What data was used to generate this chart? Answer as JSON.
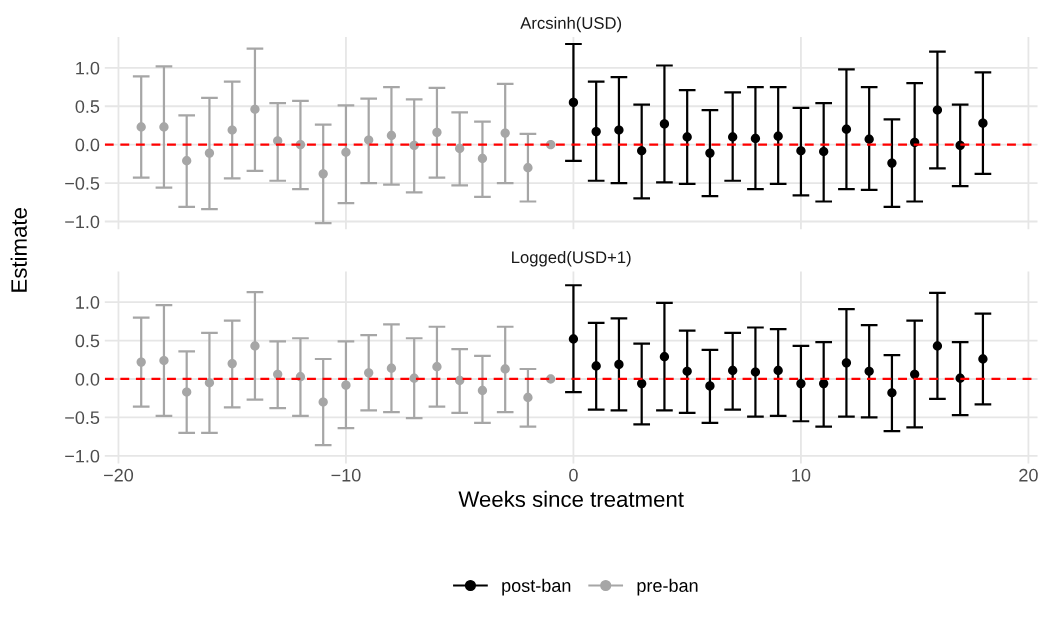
{
  "chart_data": [
    {
      "type": "scatter",
      "title": "Arcsinh(USD)",
      "ylabel": "Estimate",
      "xlim": [
        -20.6,
        20.4
      ],
      "ylim": [
        -1.1,
        1.4
      ],
      "xticks": [
        {
          "value": -20,
          "label": null
        },
        {
          "value": -10,
          "label": null
        },
        {
          "value": 0,
          "label": null
        },
        {
          "value": 10,
          "label": null
        },
        {
          "value": 20,
          "label": null
        }
      ],
      "yticks": [
        {
          "value": -1,
          "label": "−1.0"
        },
        {
          "value": -0.5,
          "label": "−0.5"
        },
        {
          "value": 0,
          "label": "0.0"
        },
        {
          "value": 0.5,
          "label": "0.5"
        },
        {
          "value": 1,
          "label": "1.0"
        }
      ],
      "tick_labels": "y",
      "grid": true,
      "legend": "bottom",
      "marker": "circle",
      "ref_lines": [
        {
          "axis": "y",
          "value": 0,
          "color": "#ff0000",
          "line_style": "dashed"
        }
      ],
      "series": [
        {
          "name": "post-ban",
          "color": "#000000",
          "x": [
            0,
            1,
            2,
            3,
            4,
            5,
            6,
            7,
            8,
            9,
            10,
            11,
            12,
            13,
            14,
            15,
            16,
            17,
            18
          ],
          "values": [
            0.55,
            0.17,
            0.19,
            -0.08,
            0.27,
            0.1,
            -0.11,
            0.1,
            0.08,
            0.11,
            -0.08,
            -0.09,
            0.2,
            0.07,
            -0.24,
            0.03,
            0.45,
            -0.01,
            0.28
          ],
          "errors": [
            [
              -0.21,
              1.31
            ],
            [
              -0.47,
              0.82
            ],
            [
              -0.5,
              0.88
            ],
            [
              -0.7,
              0.52
            ],
            [
              -0.49,
              1.03
            ],
            [
              -0.51,
              0.71
            ],
            [
              -0.67,
              0.45
            ],
            [
              -0.47,
              0.68
            ],
            [
              -0.58,
              0.75
            ],
            [
              -0.51,
              0.75
            ],
            [
              -0.66,
              0.48
            ],
            [
              -0.74,
              0.54
            ],
            [
              -0.58,
              0.98
            ],
            [
              -0.59,
              0.75
            ],
            [
              -0.81,
              0.33
            ],
            [
              -0.74,
              0.8
            ],
            [
              -0.31,
              1.21
            ],
            [
              -0.54,
              0.52
            ],
            [
              -0.38,
              0.94
            ]
          ]
        },
        {
          "name": "pre-ban",
          "color": "#a6a6a6",
          "x": [
            -19,
            -18,
            -17,
            -16,
            -15,
            -14,
            -13,
            -12,
            -11,
            -10,
            -9,
            -8,
            -7,
            -6,
            -5,
            -4,
            -3,
            -2,
            -1
          ],
          "values": [
            0.23,
            0.23,
            -0.21,
            -0.11,
            0.19,
            0.46,
            0.05,
            0.0,
            -0.38,
            -0.1,
            0.06,
            0.12,
            -0.01,
            0.16,
            -0.05,
            -0.18,
            0.15,
            -0.3,
            0.0
          ],
          "errors": [
            [
              -0.43,
              0.89
            ],
            [
              -0.56,
              1.02
            ],
            [
              -0.81,
              0.38
            ],
            [
              -0.84,
              0.61
            ],
            [
              -0.44,
              0.82
            ],
            [
              -0.34,
              1.25
            ],
            [
              -0.47,
              0.54
            ],
            [
              -0.58,
              0.57
            ],
            [
              -1.02,
              0.26
            ],
            [
              -0.76,
              0.51
            ],
            [
              -0.5,
              0.6
            ],
            [
              -0.52,
              0.75
            ],
            [
              -0.62,
              0.59
            ],
            [
              -0.43,
              0.74
            ],
            [
              -0.53,
              0.42
            ],
            [
              -0.68,
              0.3
            ],
            [
              -0.5,
              0.79
            ],
            [
              -0.74,
              0.14
            ],
            null
          ]
        }
      ]
    },
    {
      "type": "scatter",
      "title": "Logged(USD+1)",
      "xlabel": "Weeks since treatment",
      "xlim": [
        -20.6,
        20.4
      ],
      "ylim": [
        -1.1,
        1.4
      ],
      "xticks": [
        {
          "value": -20,
          "label": "−20"
        },
        {
          "value": -10,
          "label": "−10"
        },
        0,
        10,
        20
      ],
      "yticks": [
        {
          "value": -1,
          "label": "−1.0"
        },
        {
          "value": -0.5,
          "label": "−0.5"
        },
        {
          "value": 0,
          "label": "0.0"
        },
        {
          "value": 0.5,
          "label": "0.5"
        },
        {
          "value": 1,
          "label": "1.0"
        }
      ],
      "grid": true,
      "marker": "circle",
      "ref_lines": [
        {
          "axis": "y",
          "value": 0,
          "color": "#ff0000",
          "line_style": "dashed"
        }
      ],
      "series": [
        {
          "color": "#000000",
          "x": [
            0,
            1,
            2,
            3,
            4,
            5,
            6,
            7,
            8,
            9,
            10,
            11,
            12,
            13,
            14,
            15,
            16,
            17,
            18
          ],
          "values": [
            0.52,
            0.17,
            0.19,
            -0.06,
            0.29,
            0.1,
            -0.09,
            0.11,
            0.09,
            0.11,
            -0.06,
            -0.06,
            0.21,
            0.1,
            -0.18,
            0.06,
            0.43,
            0.01,
            0.26
          ],
          "errors": [
            [
              -0.17,
              1.22
            ],
            [
              -0.4,
              0.73
            ],
            [
              -0.41,
              0.79
            ],
            [
              -0.59,
              0.46
            ],
            [
              -0.41,
              0.99
            ],
            [
              -0.44,
              0.63
            ],
            [
              -0.57,
              0.38
            ],
            [
              -0.4,
              0.6
            ],
            [
              -0.49,
              0.67
            ],
            [
              -0.48,
              0.65
            ],
            [
              -0.55,
              0.43
            ],
            [
              -0.62,
              0.48
            ],
            [
              -0.49,
              0.91
            ],
            [
              -0.5,
              0.7
            ],
            [
              -0.68,
              0.31
            ],
            [
              -0.63,
              0.76
            ],
            [
              -0.26,
              1.12
            ],
            [
              -0.47,
              0.48
            ],
            [
              -0.33,
              0.85
            ]
          ]
        },
        {
          "color": "#a6a6a6",
          "x": [
            -19,
            -18,
            -17,
            -16,
            -15,
            -14,
            -13,
            -12,
            -11,
            -10,
            -9,
            -8,
            -7,
            -6,
            -5,
            -4,
            -3,
            -2,
            -1
          ],
          "values": [
            0.22,
            0.24,
            -0.17,
            -0.05,
            0.2,
            0.43,
            0.06,
            0.03,
            -0.3,
            -0.08,
            0.08,
            0.14,
            0.01,
            0.16,
            -0.02,
            -0.15,
            0.13,
            -0.24,
            0.0
          ],
          "errors": [
            [
              -0.36,
              0.8
            ],
            [
              -0.48,
              0.96
            ],
            [
              -0.7,
              0.36
            ],
            [
              -0.7,
              0.6
            ],
            [
              -0.37,
              0.76
            ],
            [
              -0.27,
              1.13
            ],
            [
              -0.38,
              0.49
            ],
            [
              -0.48,
              0.53
            ],
            [
              -0.86,
              0.26
            ],
            [
              -0.64,
              0.49
            ],
            [
              -0.41,
              0.57
            ],
            [
              -0.43,
              0.71
            ],
            [
              -0.51,
              0.53
            ],
            [
              -0.36,
              0.68
            ],
            [
              -0.44,
              0.39
            ],
            [
              -0.57,
              0.3
            ],
            [
              -0.43,
              0.68
            ],
            [
              -0.62,
              0.13
            ],
            null
          ]
        }
      ]
    }
  ]
}
